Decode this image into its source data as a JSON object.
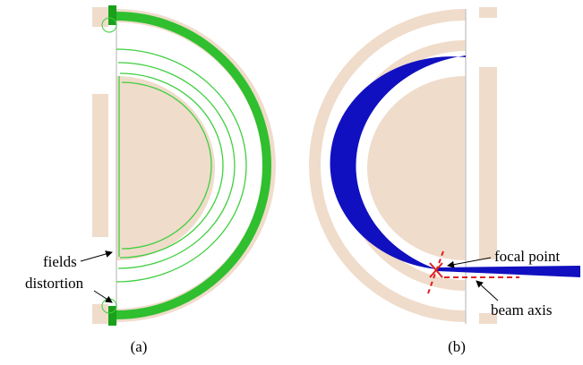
{
  "panel_a": {
    "caption": "(a)",
    "annotation": [
      "fields",
      "distortion"
    ]
  },
  "panel_b": {
    "caption": "(b)",
    "annotations": [
      "focal point",
      "beam axis"
    ]
  }
}
